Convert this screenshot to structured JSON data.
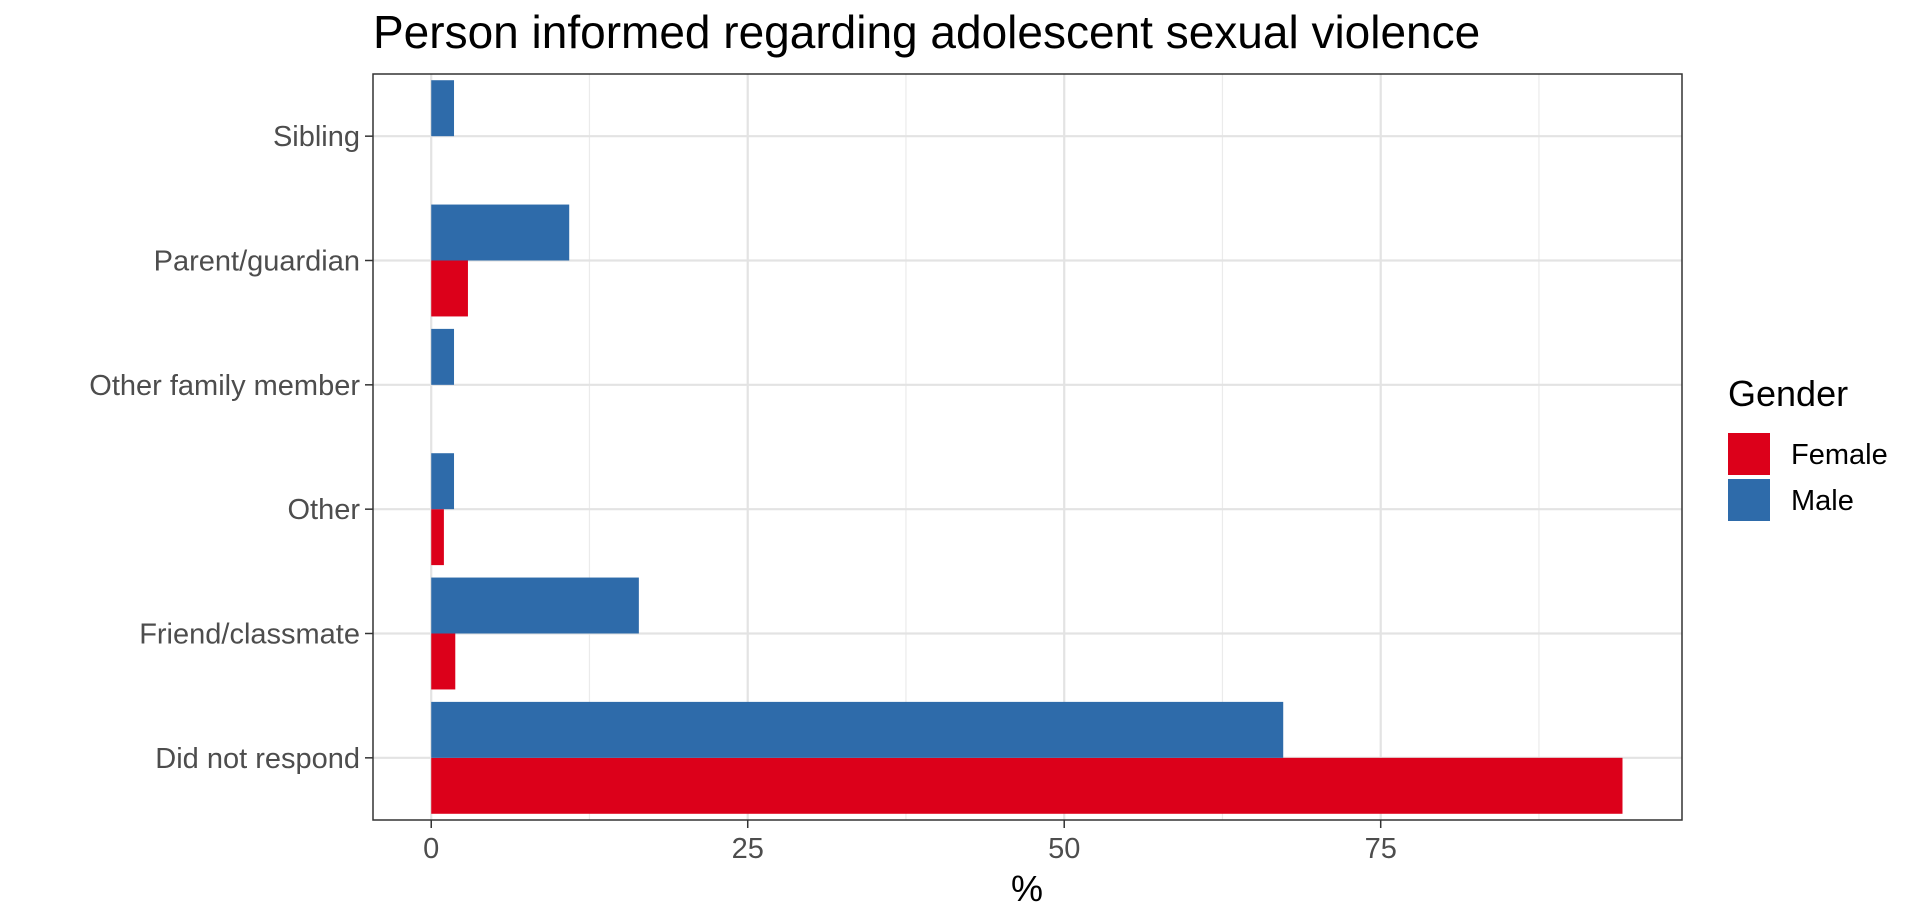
{
  "chart_data": {
    "type": "bar",
    "orientation": "horizontal",
    "title": "Person informed regarding adolescent sexual violence",
    "xlabel": "%",
    "ylabel": "",
    "xlim": [
      -4.6,
      98.8
    ],
    "xticks": [
      0,
      25,
      50,
      75
    ],
    "categories": [
      "Did not respond",
      "Friend/classmate",
      "Other",
      "Other family member",
      "Parent/guardian",
      "Sibling"
    ],
    "series": [
      {
        "name": "Female",
        "color": "#DC001A",
        "values": [
          94.1,
          1.9,
          1.0,
          null,
          2.9,
          null
        ]
      },
      {
        "name": "Male",
        "color": "#2E6BAA",
        "values": [
          67.3,
          16.4,
          1.8,
          1.8,
          10.9,
          1.8
        ]
      }
    ],
    "legend": {
      "title": "Gender",
      "position": "right"
    },
    "grid": true
  }
}
